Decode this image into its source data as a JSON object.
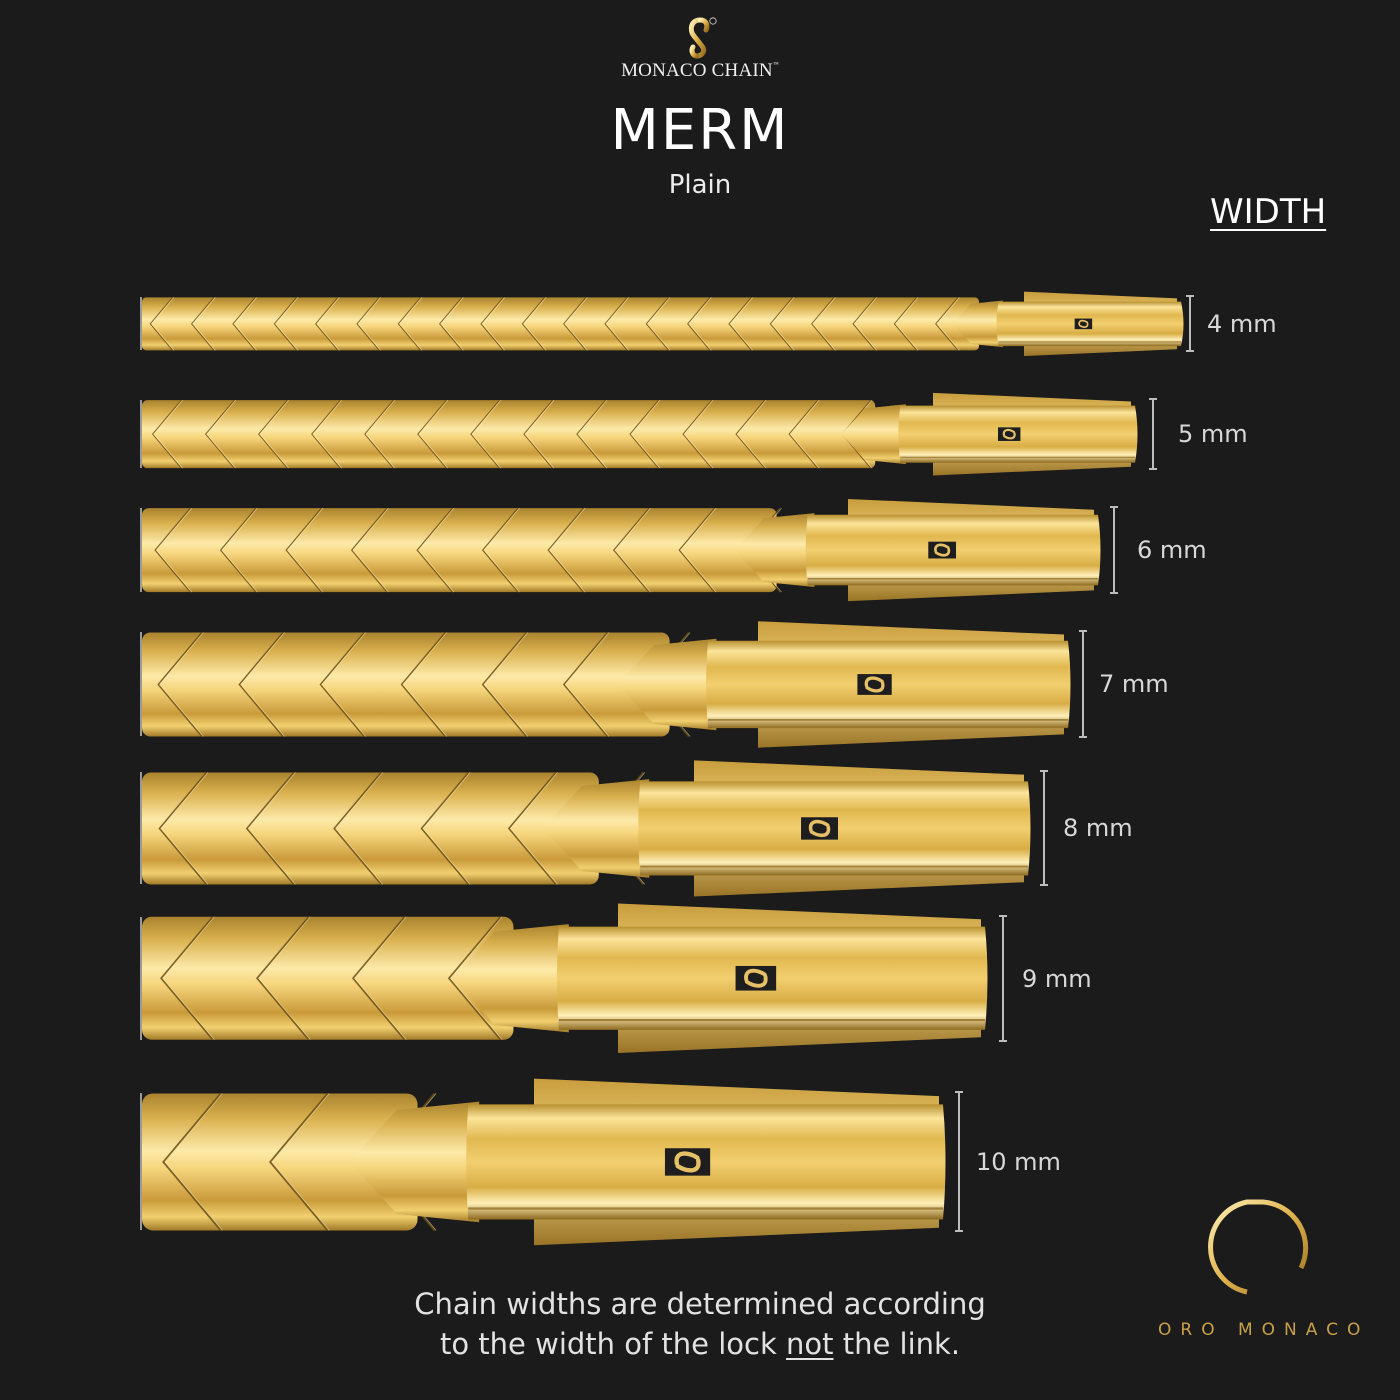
{
  "brand": {
    "logo_icon": "monaco-chain-link-icon",
    "name": "MONACO CHAIN",
    "trademark": "™",
    "registered": "®"
  },
  "product": {
    "title": "MERM",
    "subtitle": "Plain"
  },
  "width_heading": "WIDTH",
  "chains": [
    {
      "label": "4 mm",
      "width_mm": 4
    },
    {
      "label": "5 mm",
      "width_mm": 5
    },
    {
      "label": "6 mm",
      "width_mm": 6
    },
    {
      "label": "7 mm",
      "width_mm": 7
    },
    {
      "label": "8 mm",
      "width_mm": 8
    },
    {
      "label": "9 mm",
      "width_mm": 9
    },
    {
      "label": "10 mm",
      "width_mm": 10
    }
  ],
  "footer": {
    "line1": "Chain widths are determined according",
    "line2_pre": "to the width of the lock ",
    "line2_underlined": "not",
    "line2_post": " the link."
  },
  "maker": {
    "logo_icon": "oro-monaco-om-icon",
    "name": "ORO MONACO"
  },
  "colors": {
    "background": "#1b1b1b",
    "gold_light": "#fbe7a1",
    "gold_mid": "#e2b955",
    "gold_dark": "#9c7624",
    "maker_text": "#c9a04a"
  }
}
